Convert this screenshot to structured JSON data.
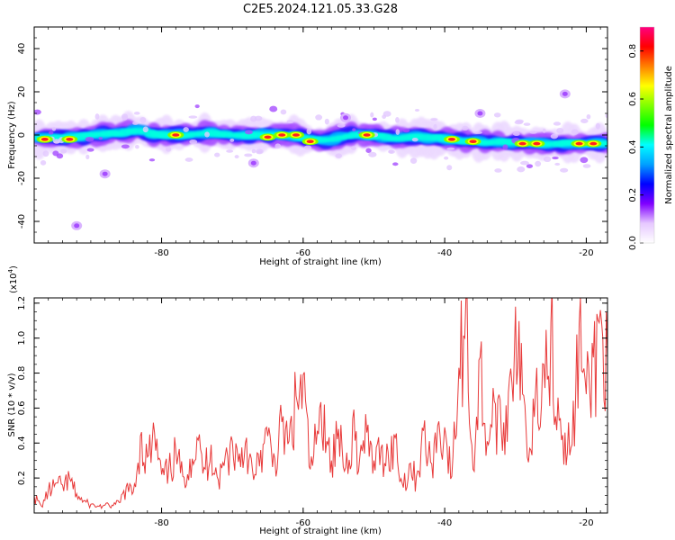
{
  "title": "C2E5.2024.121.05.33.G28",
  "chart_data": [
    {
      "type": "heatmap",
      "xlabel": "Height of straight line (km)",
      "ylabel": "Frequency (Hz)",
      "xlim": [
        -98,
        -17
      ],
      "ylim": [
        -50,
        50
      ],
      "xticks": [
        -80,
        -60,
        -40,
        -20
      ],
      "yticks": [
        -40,
        -20,
        0,
        20,
        40
      ],
      "colorbar": {
        "label": "Normalized spectral amplitude",
        "range": [
          0,
          0.9
        ],
        "ticks": [
          0.0,
          0.2,
          0.4,
          0.6,
          0.8
        ],
        "colors": [
          "#ffffff",
          "#e6c8ff",
          "#8000ff",
          "#0000ff",
          "#00a0ff",
          "#00ffff",
          "#00ff00",
          "#80ff00",
          "#ffff00",
          "#ff8000",
          "#ff0000",
          "#ff0080"
        ]
      },
      "ridge": [
        [
          -98,
          -1.5
        ],
        [
          -94,
          -1.5
        ],
        [
          -90,
          0
        ],
        [
          -86,
          1
        ],
        [
          -84,
          2.5
        ],
        [
          -82,
          0
        ],
        [
          -78,
          0
        ],
        [
          -74,
          1
        ],
        [
          -70,
          0
        ],
        [
          -66,
          0
        ],
        [
          -62,
          0
        ],
        [
          -58,
          -3
        ],
        [
          -54,
          0
        ],
        [
          -52,
          0
        ],
        [
          -48,
          -1.5
        ],
        [
          -44,
          -1
        ],
        [
          -40,
          -2
        ],
        [
          -36,
          -3
        ],
        [
          -32,
          -3.5
        ],
        [
          -28,
          -4
        ],
        [
          -24,
          -4
        ],
        [
          -20,
          -4
        ],
        [
          -18,
          -4
        ]
      ],
      "hotspots": [
        [
          -96.5,
          -2
        ],
        [
          -93,
          -2
        ],
        [
          -78,
          0
        ],
        [
          -65,
          -1
        ],
        [
          -63,
          0
        ],
        [
          -61,
          0
        ],
        [
          -59,
          -3
        ],
        [
          -51,
          0
        ],
        [
          -39,
          -2
        ],
        [
          -36,
          -3
        ],
        [
          -29,
          -4
        ],
        [
          -27,
          -4
        ],
        [
          -21,
          -4
        ],
        [
          -19,
          -4
        ]
      ],
      "blobs": [
        [
          -54,
          8
        ],
        [
          -23,
          19
        ],
        [
          -88,
          -18
        ],
        [
          -67,
          -13
        ],
        [
          -92,
          -42
        ],
        [
          -35,
          10
        ]
      ]
    },
    {
      "type": "line",
      "xlabel": "Height of straight line (km)",
      "ylabel": "SNR (10 * v/v)",
      "yscale_label": "(x10",
      "yscale_exp": "4",
      "yscale_close": ")",
      "xlim": [
        -98,
        -17
      ],
      "ylim": [
        0,
        12300
      ],
      "xticks": [
        -80,
        -60,
        -40,
        -20
      ],
      "yticks": [
        2000,
        4000,
        6000,
        8000,
        10000,
        12000
      ],
      "ytick_labels": [
        "0.2",
        "0.4",
        "0.6",
        "0.8",
        "1.0",
        "1.2"
      ],
      "series": [
        {
          "color": "#e83a3a",
          "x": [
            -98,
            -97,
            -96,
            -95,
            -94,
            -93,
            -92,
            -91,
            -90,
            -89,
            -88,
            -87,
            -86,
            -85,
            -84,
            -83,
            -82,
            -81,
            -80,
            -79,
            -78,
            -77,
            -76,
            -75,
            -74,
            -73,
            -72,
            -71,
            -70,
            -69,
            -68,
            -67,
            -66,
            -65,
            -64,
            -63,
            -62,
            -61,
            -60,
            -59,
            -58,
            -57,
            -56,
            -55,
            -54,
            -53,
            -52,
            -51,
            -50,
            -49,
            -48,
            -47,
            -46,
            -45,
            -44,
            -43,
            -42,
            -41,
            -40,
            -39,
            -38,
            -37,
            -36,
            -35,
            -34,
            -33,
            -32,
            -31,
            -30,
            -29,
            -28,
            -27,
            -26,
            -25,
            -24,
            -23,
            -22,
            -21,
            -20,
            -19,
            -18,
            -17
          ],
          "values": [
            1000,
            400,
            1300,
            1700,
            1600,
            2000,
            1100,
            700,
            500,
            400,
            450,
            450,
            600,
            1500,
            1200,
            4400,
            3200,
            4600,
            2200,
            2500,
            3600,
            2100,
            3100,
            4300,
            2600,
            3900,
            1900,
            3300,
            4100,
            3400,
            4300,
            1900,
            3600,
            4400,
            3100,
            5200,
            4100,
            6700,
            7900,
            2500,
            4700,
            6200,
            3000,
            4800,
            2600,
            5400,
            3200,
            4600,
            3000,
            3700,
            3500,
            4300,
            1700,
            2800,
            2100,
            4700,
            2900,
            5000,
            4900,
            2100,
            8300,
            12300,
            2500,
            8900,
            4100,
            6400,
            4700,
            6900,
            11800,
            6800,
            3700,
            8300,
            8500,
            10900,
            6600,
            4600,
            3900,
            10800,
            6800,
            8900,
            11600,
            8800
          ]
        }
      ]
    }
  ]
}
